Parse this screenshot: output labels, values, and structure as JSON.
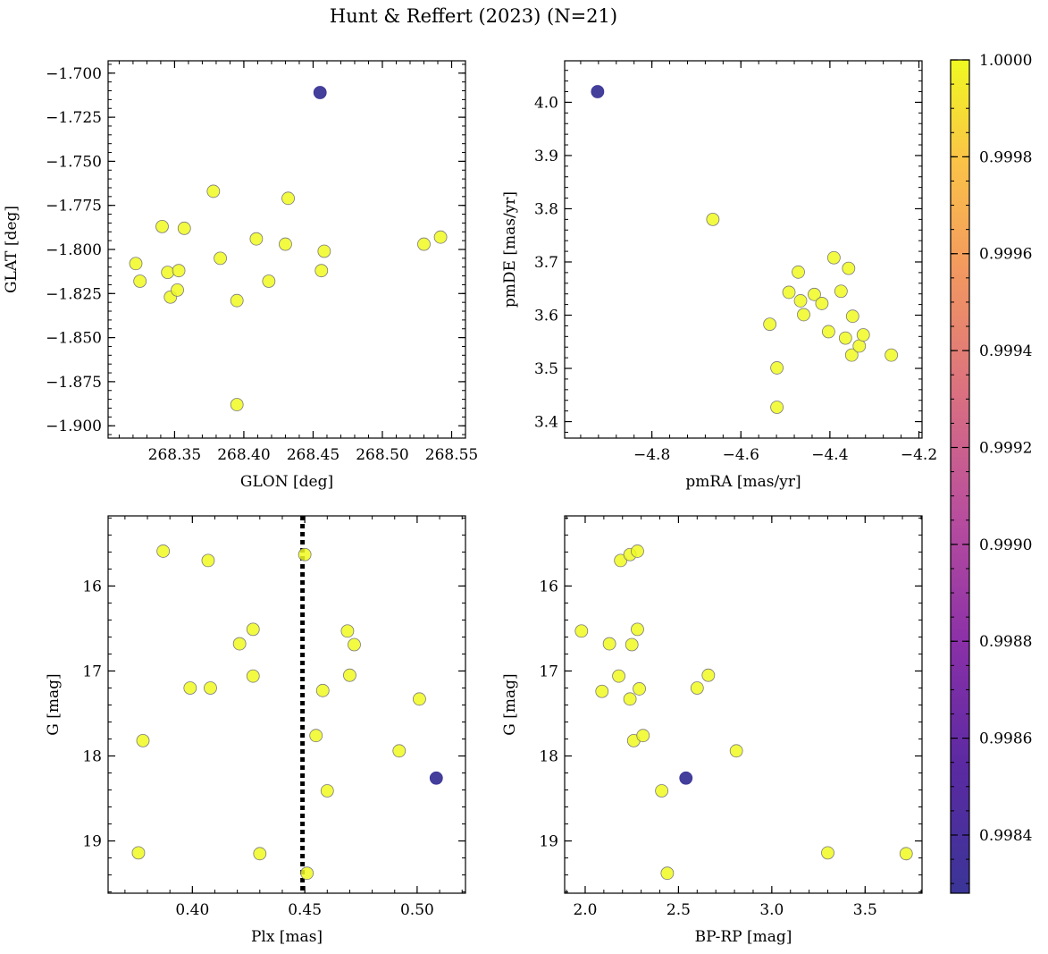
{
  "title": "Hunt & Reffert (2023) (N=21)",
  "colors": {
    "member": "#f0f921",
    "outlier": "#3b3597",
    "edge": "#7a7a7a",
    "guide_line": "#000000"
  },
  "chart_data": [
    {
      "type": "scatter",
      "name": "sky-position",
      "xlabel": "GLON [deg]",
      "ylabel": "GLAT [deg]",
      "xlim": [
        268.302,
        268.56
      ],
      "ylim": [
        -1.907,
        -1.693
      ],
      "xticks": [
        268.35,
        268.4,
        268.45,
        268.5,
        268.55
      ],
      "xtick_labels": [
        "268.35",
        "268.40",
        "268.45",
        "268.50",
        "268.55"
      ],
      "yticks": [
        -1.7,
        -1.725,
        -1.75,
        -1.775,
        -1.8,
        -1.825,
        -1.85,
        -1.875,
        -1.9
      ],
      "ytick_labels": [
        "−1.700",
        "−1.725",
        "−1.750",
        "−1.775",
        "−1.800",
        "−1.825",
        "−1.850",
        "−1.875",
        "−1.900"
      ],
      "x": [
        268.455,
        268.322,
        268.325,
        268.341,
        268.345,
        268.347,
        268.352,
        268.353,
        268.357,
        268.378,
        268.383,
        268.395,
        268.395,
        268.409,
        268.418,
        268.43,
        268.432,
        268.456,
        268.458,
        268.53,
        268.542
      ],
      "y": [
        -1.711,
        -1.808,
        -1.818,
        -1.787,
        -1.813,
        -1.827,
        -1.823,
        -1.812,
        -1.788,
        -1.767,
        -1.805,
        -1.829,
        -1.888,
        -1.794,
        -1.818,
        -1.797,
        -1.771,
        -1.812,
        -1.801,
        -1.797,
        -1.793
      ],
      "membership": [
        0.9983,
        1.0,
        1.0,
        1.0,
        1.0,
        1.0,
        1.0,
        1.0,
        1.0,
        1.0,
        1.0,
        1.0,
        1.0,
        1.0,
        1.0,
        1.0,
        1.0,
        1.0,
        1.0,
        1.0,
        1.0
      ]
    },
    {
      "type": "scatter",
      "name": "proper-motion",
      "xlabel": "pmRA [mas/yr]",
      "ylabel": "pmDE [mas/yr]",
      "xlim": [
        -4.996,
        -4.193
      ],
      "ylim": [
        3.369,
        4.078
      ],
      "xticks": [
        -4.8,
        -4.6,
        -4.4,
        -4.2
      ],
      "xtick_labels": [
        "−4.8",
        "−4.6",
        "−4.4",
        "−4.2"
      ],
      "yticks": [
        3.4,
        3.5,
        3.6,
        3.7,
        3.8,
        3.9,
        4.0
      ],
      "ytick_labels": [
        "3.4",
        "3.5",
        "3.6",
        "3.7",
        "3.8",
        "3.9",
        "4.0"
      ],
      "x": [
        -4.922,
        -4.663,
        -4.535,
        -4.519,
        -4.519,
        -4.492,
        -4.471,
        -4.466,
        -4.459,
        -4.435,
        -4.418,
        -4.403,
        -4.391,
        -4.375,
        -4.365,
        -4.358,
        -4.351,
        -4.349,
        -4.334,
        -4.325,
        -4.262
      ],
      "y": [
        4.02,
        3.78,
        3.583,
        3.501,
        3.427,
        3.643,
        3.681,
        3.627,
        3.601,
        3.639,
        3.622,
        3.569,
        3.708,
        3.645,
        3.557,
        3.688,
        3.525,
        3.598,
        3.542,
        3.563,
        3.525
      ],
      "membership": [
        0.9983,
        1.0,
        1.0,
        1.0,
        1.0,
        1.0,
        1.0,
        1.0,
        1.0,
        1.0,
        1.0,
        1.0,
        1.0,
        1.0,
        1.0,
        1.0,
        1.0,
        1.0,
        1.0,
        1.0,
        1.0
      ]
    },
    {
      "type": "scatter",
      "name": "parallax-magnitude",
      "xlabel": "Plx [mas]",
      "ylabel": "G [mag]",
      "xlim": [
        0.3625,
        0.5215
      ],
      "ylim": [
        19.615,
        15.175
      ],
      "y_inverted": true,
      "xticks": [
        0.4,
        0.45,
        0.5
      ],
      "xtick_labels": [
        "0.40",
        "0.45",
        "0.50"
      ],
      "yticks": [
        16,
        17,
        18,
        19
      ],
      "ytick_labels": [
        "16",
        "17",
        "18",
        "19"
      ],
      "vline": 0.449,
      "x": [
        0.5085,
        0.376,
        0.378,
        0.387,
        0.399,
        0.407,
        0.408,
        0.421,
        0.427,
        0.427,
        0.43,
        0.45,
        0.451,
        0.455,
        0.458,
        0.46,
        0.469,
        0.47,
        0.472,
        0.492,
        0.501
      ],
      "y": [
        18.26,
        19.14,
        17.82,
        15.59,
        17.2,
        15.7,
        17.2,
        16.68,
        16.51,
        17.06,
        19.15,
        15.63,
        19.38,
        17.76,
        17.23,
        18.41,
        16.53,
        17.05,
        16.69,
        17.94,
        17.33
      ],
      "membership": [
        0.9983,
        1.0,
        1.0,
        1.0,
        1.0,
        1.0,
        1.0,
        1.0,
        1.0,
        1.0,
        1.0,
        1.0,
        1.0,
        1.0,
        1.0,
        1.0,
        1.0,
        1.0,
        1.0,
        1.0,
        1.0
      ]
    },
    {
      "type": "scatter",
      "name": "color-magnitude",
      "xlabel": "BP-RP [mag]",
      "ylabel": "G [mag]",
      "xlim": [
        1.89,
        3.805
      ],
      "ylim": [
        19.615,
        15.175
      ],
      "y_inverted": true,
      "xticks": [
        2.0,
        2.5,
        3.0,
        3.5
      ],
      "xtick_labels": [
        "2.0",
        "2.5",
        "3.0",
        "3.5"
      ],
      "yticks": [
        16,
        17,
        18,
        19
      ],
      "ytick_labels": [
        "16",
        "17",
        "18",
        "19"
      ],
      "x": [
        2.54,
        1.98,
        2.09,
        2.13,
        2.18,
        2.19,
        2.24,
        2.24,
        2.25,
        2.26,
        2.28,
        2.28,
        2.29,
        2.31,
        2.41,
        2.44,
        2.6,
        2.66,
        2.81,
        3.3,
        3.72
      ],
      "y": [
        18.26,
        16.53,
        17.24,
        16.68,
        17.06,
        15.7,
        15.63,
        17.33,
        16.69,
        17.82,
        15.59,
        16.51,
        17.21,
        17.76,
        18.41,
        19.38,
        17.2,
        17.05,
        17.94,
        19.14,
        19.15
      ],
      "membership": [
        0.9983,
        1.0,
        1.0,
        1.0,
        1.0,
        1.0,
        1.0,
        1.0,
        1.0,
        1.0,
        1.0,
        1.0,
        1.0,
        1.0,
        1.0,
        1.0,
        1.0,
        1.0,
        1.0,
        1.0,
        1.0
      ]
    }
  ],
  "colorbar": {
    "min": 0.99828,
    "max": 1.0,
    "ticks": [
      0.9984,
      0.9986,
      0.9988,
      0.999,
      0.9992,
      0.9994,
      0.9996,
      0.9998,
      1.0
    ],
    "tick_labels": [
      "0.9984",
      "0.9986",
      "0.9988",
      "0.9990",
      "0.9992",
      "0.9994",
      "0.9996",
      "0.9998",
      "1.0000"
    ],
    "colormap": "plasma"
  }
}
